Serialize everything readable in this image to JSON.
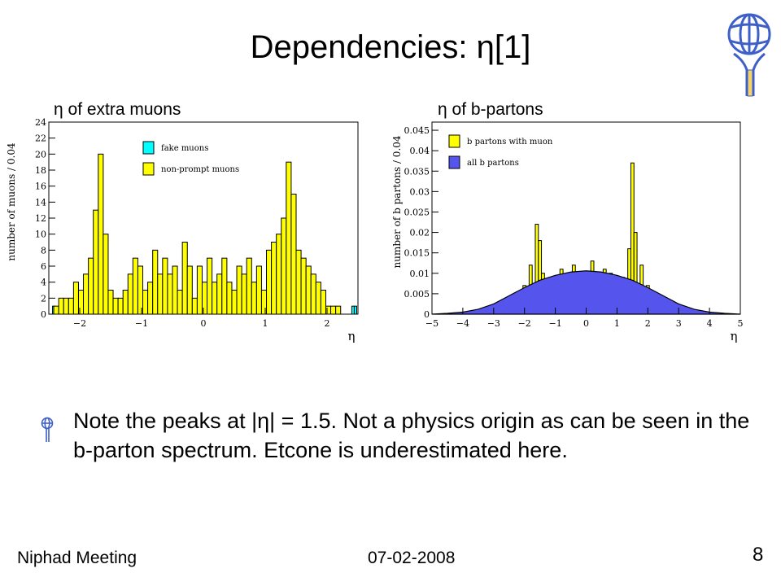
{
  "slide": {
    "title": "Dependencies: η[1]",
    "bullet": "Note the peaks at |η| = 1.5. Not a physics origin as can be seen in the b-parton spectrum. Etcone is underestimated here.",
    "footer_left": "Niphad Meeting",
    "footer_date": "07-02-2008",
    "page_number": "8"
  },
  "colors": {
    "yellow": "#ffff00",
    "cyan": "#00ffff",
    "blue": "#5555ee",
    "black": "#000000"
  },
  "icons": {
    "logo": "atlas-figure-logo",
    "bullet": "atlas-bullet-icon"
  },
  "chart_data": [
    {
      "type": "bar",
      "caption": "η of extra muons",
      "xlabel": "η",
      "ylabel": "number of muons / 0.04",
      "xlim": [
        -2.5,
        2.5
      ],
      "ylim": [
        0,
        24
      ],
      "xticks": [
        -2,
        -1,
        0,
        1,
        2
      ],
      "yticks": [
        0,
        2,
        4,
        6,
        8,
        10,
        12,
        14,
        16,
        18,
        20,
        22,
        24
      ],
      "legend_position": "top-left",
      "series": [
        {
          "name": "fake muons",
          "color": "#00ffff",
          "x": [
            -2.42,
            -1.58,
            -1.18,
            -0.94,
            -0.82,
            -0.38,
            0.3,
            0.88,
            1.18,
            1.86,
            2.42,
            2.46
          ],
          "values": [
            1,
            1,
            1,
            1,
            1,
            1,
            1,
            1,
            1,
            1,
            1,
            1
          ]
        },
        {
          "name": "non-prompt muons",
          "color": "#ffff00",
          "x": [
            -2.38,
            -2.3,
            -2.22,
            -2.14,
            -2.06,
            -1.98,
            -1.9,
            -1.82,
            -1.74,
            -1.66,
            -1.58,
            -1.5,
            -1.42,
            -1.34,
            -1.26,
            -1.18,
            -1.1,
            -1.02,
            -0.94,
            -0.86,
            -0.78,
            -0.7,
            -0.62,
            -0.54,
            -0.46,
            -0.38,
            -0.3,
            -0.22,
            -0.14,
            -0.06,
            0.02,
            0.1,
            0.18,
            0.26,
            0.34,
            0.42,
            0.5,
            0.58,
            0.66,
            0.74,
            0.82,
            0.9,
            0.98,
            1.06,
            1.14,
            1.22,
            1.3,
            1.38,
            1.46,
            1.54,
            1.62,
            1.7,
            1.78,
            1.86,
            1.94,
            2.02,
            2.1,
            2.18
          ],
          "values": [
            1,
            2,
            2,
            2,
            4,
            3,
            5,
            7,
            13,
            20,
            10,
            3,
            2,
            2,
            3,
            5,
            7,
            6,
            3,
            4,
            8,
            5,
            7,
            5,
            6,
            3,
            9,
            6,
            2,
            6,
            4,
            7,
            4,
            5,
            7,
            4,
            3,
            6,
            5,
            7,
            4,
            6,
            3,
            8,
            9,
            10,
            12,
            19,
            15,
            8,
            7,
            6,
            5,
            4,
            3,
            1,
            1,
            1
          ]
        }
      ]
    },
    {
      "type": "area",
      "caption": "η of b-partons",
      "xlabel": "η",
      "ylabel": "number of b partons / 0.04",
      "xlim": [
        -5,
        5
      ],
      "ylim": [
        0,
        0.047
      ],
      "xticks": [
        -5,
        -4,
        -3,
        -2,
        -1,
        0,
        1,
        2,
        3,
        4,
        5
      ],
      "yticks": [
        "0",
        "0.005",
        "0.01",
        "0.015",
        "0.02",
        "0.025",
        "0.03",
        "0.035",
        "0.04",
        "0.045"
      ],
      "legend_position": "top-left",
      "series": [
        {
          "name": "b partons with muon",
          "color": "#ffff00",
          "x": [
            -2.4,
            -2.2,
            -2.0,
            -1.8,
            -1.6,
            -1.5,
            -1.4,
            -1.2,
            -1.0,
            -0.8,
            -0.6,
            -0.4,
            -0.2,
            0.0,
            0.2,
            0.4,
            0.6,
            0.8,
            1.0,
            1.2,
            1.4,
            1.5,
            1.6,
            1.8,
            2.0,
            2.2,
            2.4
          ],
          "values": [
            0.002,
            0.004,
            0.007,
            0.012,
            0.022,
            0.018,
            0.01,
            0.007,
            0.009,
            0.011,
            0.008,
            0.012,
            0.01,
            0.007,
            0.013,
            0.009,
            0.011,
            0.01,
            0.008,
            0.009,
            0.016,
            0.037,
            0.02,
            0.012,
            0.007,
            0.003,
            0.001
          ]
        },
        {
          "name": "all b partons",
          "color": "#5555ee",
          "x": [
            -5,
            -4.5,
            -4,
            -3.5,
            -3,
            -2.5,
            -2,
            -1.5,
            -1,
            -0.5,
            0,
            0.5,
            1,
            1.5,
            2,
            2.5,
            3,
            3.5,
            4,
            4.5,
            5
          ],
          "values": [
            0,
            0.0002,
            0.0005,
            0.0012,
            0.0025,
            0.0045,
            0.0065,
            0.0083,
            0.0095,
            0.0103,
            0.0106,
            0.0103,
            0.0095,
            0.0083,
            0.0065,
            0.0045,
            0.0025,
            0.0012,
            0.0005,
            0.0002,
            0
          ]
        }
      ]
    }
  ]
}
